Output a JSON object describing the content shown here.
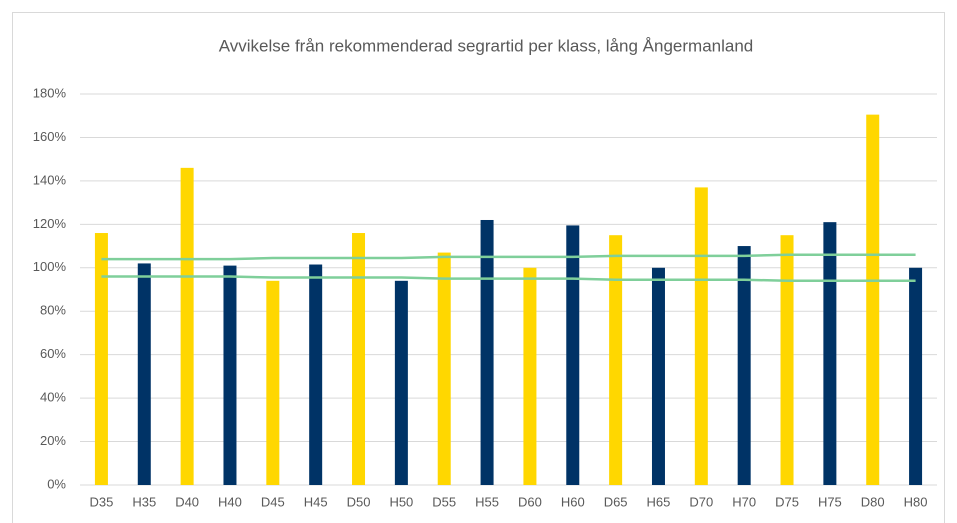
{
  "chart_data": {
    "type": "bar",
    "title": "Avvikelse från rekommenderad segrartid per klass, lång Ångermanland",
    "categories": [
      "D35",
      "H35",
      "D40",
      "H40",
      "D45",
      "H45",
      "D50",
      "H50",
      "D55",
      "H55",
      "D60",
      "H60",
      "D65",
      "H65",
      "D70",
      "H70",
      "D75",
      "H75",
      "D80",
      "H80"
    ],
    "values": [
      116,
      102,
      146,
      101,
      94,
      101.5,
      116,
      94,
      107,
      122,
      100,
      119.5,
      115,
      100,
      137,
      110,
      115,
      121,
      170.5,
      100
    ],
    "colors": [
      "#ffd700",
      "#003366",
      "#ffd700",
      "#003366",
      "#ffd700",
      "#003366",
      "#ffd700",
      "#003366",
      "#ffd700",
      "#003366",
      "#ffd700",
      "#003366",
      "#ffd700",
      "#003366",
      "#ffd700",
      "#003366",
      "#ffd700",
      "#003366",
      "#ffd700",
      "#003366"
    ],
    "lines": [
      {
        "color": "#7fcf9a",
        "values": [
          104,
          104,
          104,
          104,
          104.5,
          104.5,
          104.5,
          104.5,
          105,
          105,
          105,
          105,
          105.5,
          105.5,
          105.5,
          105.5,
          106,
          106,
          106,
          106
        ]
      },
      {
        "color": "#7fcf9a",
        "values": [
          96,
          96,
          96,
          96,
          95.5,
          95.5,
          95.5,
          95.5,
          95,
          95,
          95,
          95,
          94.5,
          94.5,
          94.5,
          94.5,
          94,
          94,
          94,
          94
        ]
      }
    ],
    "ylim": [
      0,
      180
    ],
    "yticks": [
      {
        "value": 0,
        "label": "0%"
      },
      {
        "value": 20,
        "label": "20%"
      },
      {
        "value": 40,
        "label": "40%"
      },
      {
        "value": 60,
        "label": "60%"
      },
      {
        "value": 80,
        "label": "80%"
      },
      {
        "value": 100,
        "label": "100%"
      },
      {
        "value": 120,
        "label": "120%"
      },
      {
        "value": 140,
        "label": "140%"
      },
      {
        "value": 160,
        "label": "160%"
      },
      {
        "value": 180,
        "label": "180%"
      }
    ],
    "grid": true
  }
}
